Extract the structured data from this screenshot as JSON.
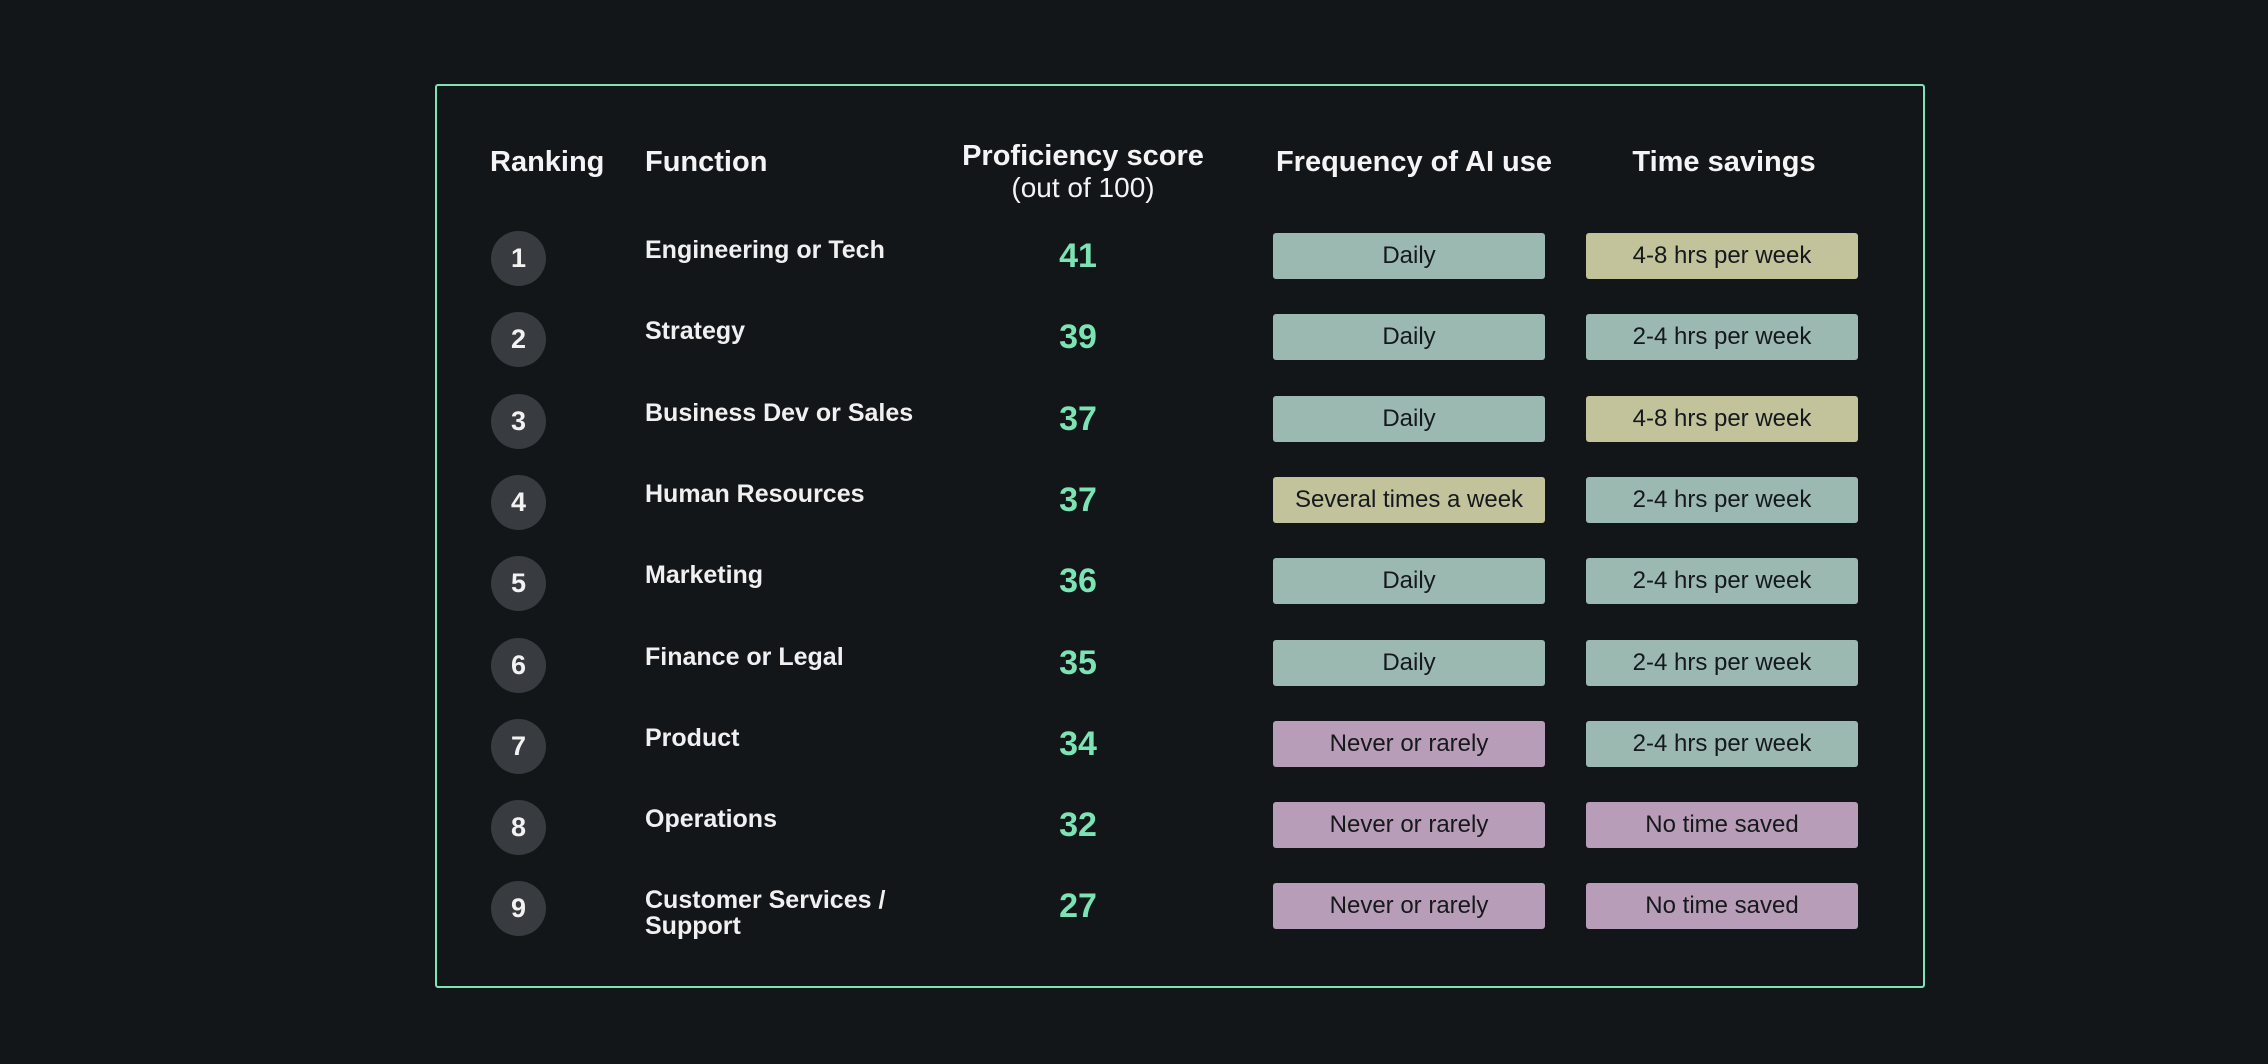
{
  "headers": {
    "ranking": "Ranking",
    "function": "Function",
    "proficiency": "Proficiency score",
    "proficiency_sub": "(out of 100)",
    "frequency": "Frequency of AI use",
    "time_savings": "Time savings"
  },
  "colors": {
    "accent": "#7be3b4",
    "Daily": "#9bb8b1",
    "Several times a week": "#c2c29b",
    "Never or rarely": "#b89db8",
    "4-8 hrs per week": "#c2c29b",
    "2-4 hrs per week": "#9bb8b1",
    "No time saved": "#b89db8"
  },
  "chart_data": {
    "type": "table",
    "columns": [
      "Ranking",
      "Function",
      "Proficiency score (out of 100)",
      "Frequency of AI use",
      "Time savings"
    ],
    "rows": [
      {
        "rank": "1",
        "function": "Engineering or Tech",
        "score": 41,
        "frequency": "Daily",
        "time_savings": "4-8 hrs per week"
      },
      {
        "rank": "2",
        "function": "Strategy",
        "score": 39,
        "frequency": "Daily",
        "time_savings": "2-4 hrs per week"
      },
      {
        "rank": "3",
        "function": "Business Dev or Sales",
        "score": 37,
        "frequency": "Daily",
        "time_savings": "4-8 hrs per week"
      },
      {
        "rank": "4",
        "function": "Human Resources",
        "score": 37,
        "frequency": "Several times a week",
        "time_savings": "2-4 hrs per week"
      },
      {
        "rank": "5",
        "function": "Marketing",
        "score": 36,
        "frequency": "Daily",
        "time_savings": "2-4 hrs per week"
      },
      {
        "rank": "6",
        "function": "Finance or Legal",
        "score": 35,
        "frequency": "Daily",
        "time_savings": "2-4 hrs per week"
      },
      {
        "rank": "7",
        "function": "Product",
        "score": 34,
        "frequency": "Never or rarely",
        "time_savings": "2-4 hrs per week"
      },
      {
        "rank": "8",
        "function": "Operations",
        "score": 32,
        "frequency": "Never or rarely",
        "time_savings": "No time saved"
      },
      {
        "rank": "9",
        "function": "Customer Services / Support",
        "score": 27,
        "frequency": "Never or rarely",
        "time_savings": "No time saved"
      }
    ]
  }
}
